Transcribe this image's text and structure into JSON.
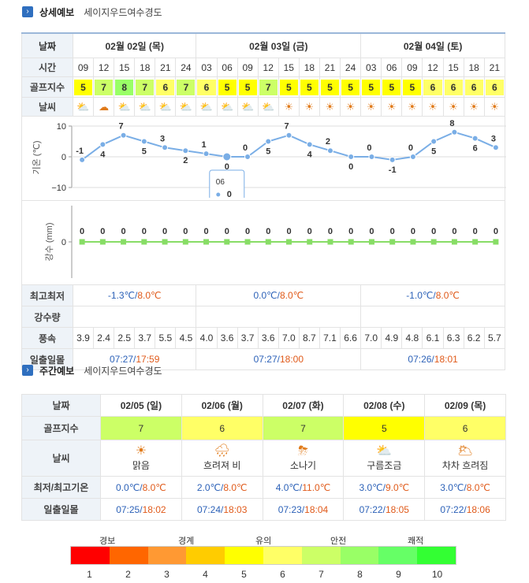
{
  "detail": {
    "title": "상세예보",
    "place": "세이지우드여수경도",
    "labels": {
      "date": "날짜",
      "time": "시간",
      "golf": "골프지수",
      "weather": "날씨",
      "temp_axis": "기온 (℃)",
      "rain_axis": "강수 (mm)",
      "minmax": "최고최저",
      "precip": "강수량",
      "wind": "풍속",
      "sun": "일출일몰"
    },
    "dates": [
      "02월 02일 (목)",
      "02월 03일 (금)",
      "02월 04일 (토)"
    ],
    "times": [
      "09",
      "12",
      "15",
      "18",
      "21",
      "24",
      "03",
      "06",
      "09",
      "12",
      "15",
      "18",
      "21",
      "24",
      "03",
      "06",
      "09",
      "12",
      "15",
      "18",
      "21"
    ],
    "golf_index": [
      5,
      7,
      8,
      7,
      6,
      7,
      6,
      5,
      5,
      7,
      5,
      5,
      5,
      5,
      5,
      5,
      5,
      6,
      6,
      6,
      6
    ],
    "weather_icons": [
      "partly-cloudy",
      "cloudy",
      "partly-cloudy",
      "partly-cloudy",
      "partly-cloudy",
      "partly-cloudy",
      "partly-cloudy",
      "partly-cloudy",
      "partly-cloudy",
      "partly-cloudy",
      "sunny",
      "sunny",
      "sunny",
      "sunny",
      "sunny",
      "sunny",
      "sunny",
      "sunny",
      "sunny",
      "sunny",
      "sunny"
    ],
    "temps": [
      -1,
      4,
      7,
      5,
      3,
      2,
      1,
      0,
      0,
      5,
      7,
      4,
      2,
      0,
      0,
      -1,
      0,
      5,
      8,
      6,
      3
    ],
    "temp_ticks": [
      "10",
      "0",
      "−10"
    ],
    "rain": [
      0,
      0,
      0,
      0,
      0,
      0,
      0,
      0,
      0,
      0,
      0,
      0,
      0,
      0,
      0,
      0,
      0,
      0,
      0,
      0,
      0
    ],
    "rain_tick": "0",
    "tooltip": {
      "time": "06",
      "value": "0"
    },
    "minmax": [
      {
        "min": "-1.3℃",
        "sep": "/",
        "max": "8.0℃"
      },
      {
        "min": "0.0℃",
        "sep": "/",
        "max": "8.0℃"
      },
      {
        "min": "-1.0℃",
        "sep": "/",
        "max": "8.0℃"
      }
    ],
    "wind": [
      "3.9",
      "2.4",
      "2.5",
      "3.7",
      "5.5",
      "4.5",
      "4.0",
      "3.6",
      "3.7",
      "3.6",
      "7.0",
      "8.7",
      "7.1",
      "6.6",
      "7.0",
      "4.9",
      "4.8",
      "6.1",
      "6.3",
      "6.2",
      "5.7"
    ],
    "sun": [
      {
        "rise": "07:27",
        "sep": "/",
        "set": "17:59"
      },
      {
        "rise": "07:27",
        "sep": "/",
        "set": "18:00"
      },
      {
        "rise": "07:26",
        "sep": "/",
        "set": "18:01"
      }
    ]
  },
  "weekly": {
    "title": "주간예보",
    "place": "세이지우드여수경도",
    "labels": {
      "date": "날짜",
      "golf": "골프지수",
      "weather": "날씨",
      "temp": "최저/최고기온",
      "sun": "일출일몰"
    },
    "days": [
      {
        "date": "02/05 (일)",
        "golf": "7",
        "golf_color": "#ccff66",
        "icon": "sunny",
        "weather": "맑음",
        "min": "0.0℃",
        "max": "8.0℃",
        "rise": "07:25",
        "set": "18:02"
      },
      {
        "date": "02/06 (월)",
        "golf": "6",
        "golf_color": "#ffff66",
        "icon": "cloudy-rain",
        "weather": "흐려져 비",
        "min": "2.0℃",
        "max": "8.0℃",
        "rise": "07:24",
        "set": "18:03"
      },
      {
        "date": "02/07 (화)",
        "golf": "7",
        "golf_color": "#ccff66",
        "icon": "shower",
        "weather": "소나기",
        "min": "4.0℃",
        "max": "11.0℃",
        "rise": "07:23",
        "set": "18:04"
      },
      {
        "date": "02/08 (수)",
        "golf": "5",
        "golf_color": "#ffff00",
        "icon": "partly-cloudy",
        "weather": "구름조금",
        "min": "3.0℃",
        "max": "9.0℃",
        "rise": "07:22",
        "set": "18:05"
      },
      {
        "date": "02/09 (목)",
        "golf": "6",
        "golf_color": "#ffff66",
        "icon": "clearing",
        "weather": "차차 흐려짐",
        "min": "3.0℃",
        "max": "8.0℃",
        "rise": "07:22",
        "set": "18:06"
      }
    ]
  },
  "legend": {
    "words": [
      "경보",
      "경계",
      "유의",
      "안전",
      "쾌적"
    ],
    "numbers": [
      "1",
      "2",
      "3",
      "4",
      "5",
      "6",
      "7",
      "8",
      "9",
      "10"
    ],
    "colors": [
      "#ff0000",
      "#ff6600",
      "#ff9933",
      "#ffcc00",
      "#ffff00",
      "#ffff66",
      "#ccff66",
      "#99ff66",
      "#66ff66",
      "#33ff33"
    ]
  },
  "golf_colors": {
    "5": "#ffff00",
    "6": "#ffff66",
    "7": "#ccff66",
    "8": "#99ff66"
  }
}
